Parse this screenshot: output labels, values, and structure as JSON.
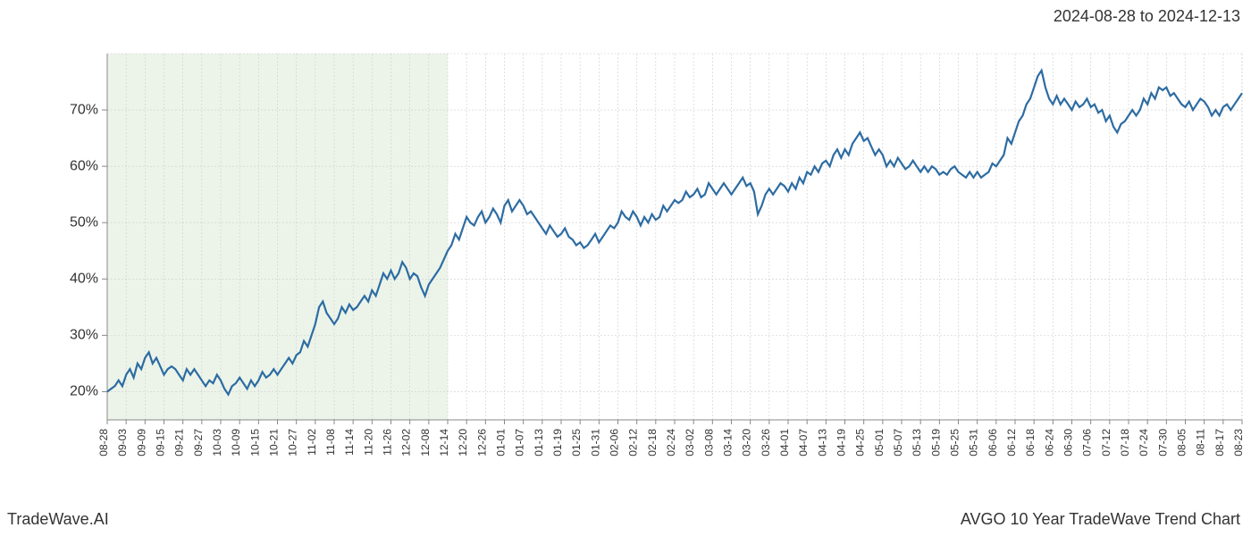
{
  "header": {
    "date_range": "2024-08-28 to 2024-12-13"
  },
  "footer": {
    "brand": "TradeWave.AI",
    "title": "AVGO 10 Year TradeWave Trend Chart"
  },
  "chart": {
    "type": "line",
    "line_color": "#2d6ca2",
    "line_width": 2.2,
    "background_color": "#ffffff",
    "grid_color": "#cccccc",
    "axis_color": "#888888",
    "highlight_band": {
      "start_label": "08-28",
      "end_label": "12-14",
      "fill_color": "#c9dfc4"
    },
    "ylim": [
      15,
      80
    ],
    "yticks": [
      20,
      30,
      40,
      50,
      60,
      70
    ],
    "ytick_labels": [
      "20%",
      "30%",
      "40%",
      "50%",
      "60%",
      "70%"
    ],
    "ytick_fontsize": 16,
    "xtick_fontsize": 12,
    "xtick_rotation": -90,
    "xtick_labels": [
      "08-28",
      "09-03",
      "09-09",
      "09-15",
      "09-21",
      "09-27",
      "10-03",
      "10-09",
      "10-15",
      "10-21",
      "10-27",
      "11-02",
      "11-08",
      "11-14",
      "11-20",
      "11-26",
      "12-02",
      "12-08",
      "12-14",
      "12-20",
      "12-26",
      "01-01",
      "01-07",
      "01-13",
      "01-19",
      "01-25",
      "01-31",
      "02-06",
      "02-12",
      "02-18",
      "02-24",
      "03-02",
      "03-08",
      "03-14",
      "03-20",
      "03-26",
      "04-01",
      "04-07",
      "04-13",
      "04-19",
      "04-25",
      "05-01",
      "05-07",
      "05-13",
      "05-19",
      "05-25",
      "05-31",
      "06-06",
      "06-12",
      "06-18",
      "06-24",
      "06-30",
      "07-06",
      "07-12",
      "07-18",
      "07-24",
      "07-30",
      "08-05",
      "08-11",
      "08-17",
      "08-23"
    ],
    "series": {
      "values": [
        20,
        20.5,
        21,
        22,
        21,
        23,
        24,
        22.5,
        25,
        24,
        26,
        27,
        25,
        26,
        24.5,
        23,
        24,
        24.5,
        24,
        23,
        22,
        24,
        23,
        24,
        23,
        22,
        21,
        22,
        21.5,
        23,
        22,
        20.5,
        19.5,
        21,
        21.5,
        22.5,
        21.5,
        20.5,
        22,
        21,
        22,
        23.5,
        22.5,
        23,
        24,
        23,
        24,
        25,
        26,
        25,
        26.5,
        27,
        29,
        28,
        30,
        32,
        35,
        36,
        34,
        33,
        32,
        33,
        35,
        34,
        35.5,
        34.5,
        35,
        36,
        37,
        36,
        38,
        37,
        39,
        41,
        40,
        41.5,
        40,
        41,
        43,
        42,
        40,
        41,
        40.5,
        38.5,
        37,
        39,
        40,
        41,
        42,
        43.5,
        45,
        46,
        48,
        47,
        49,
        51,
        50,
        49.5,
        51,
        52,
        50,
        51,
        52.5,
        51.5,
        50,
        53,
        54,
        52,
        53,
        54,
        53,
        51.5,
        52,
        51,
        50,
        49,
        48,
        49.5,
        48.5,
        47.5,
        48,
        49,
        47.5,
        47,
        46,
        46.5,
        45.5,
        46,
        47,
        48,
        46.5,
        47.5,
        48.5,
        49.5,
        49,
        50,
        52,
        51,
        50.5,
        52,
        51,
        49.5,
        51,
        50,
        51.5,
        50.5,
        51,
        53,
        52,
        53,
        54,
        53.5,
        54,
        55.5,
        54.5,
        55,
        56,
        54.5,
        55,
        57,
        56,
        55,
        56,
        57,
        56,
        55,
        56,
        57,
        58,
        56.5,
        57,
        55.5,
        51.5,
        53,
        55,
        56,
        55,
        56,
        57,
        56.5,
        55.5,
        57,
        56,
        58,
        57,
        59,
        58.5,
        60,
        59,
        60.5,
        61,
        60,
        62,
        63,
        61.5,
        63,
        62,
        64,
        65,
        66,
        64.5,
        65,
        63.5,
        62,
        63,
        62,
        60,
        61,
        60,
        61.5,
        60.5,
        59.5,
        60,
        61,
        60,
        59,
        60,
        59,
        60,
        59.5,
        58.5,
        59,
        58.5,
        59.5,
        60,
        59,
        58.5,
        58,
        59,
        58,
        59,
        58,
        58.5,
        59,
        60.5,
        60,
        61,
        62,
        65,
        64,
        66,
        68,
        69,
        71,
        72,
        74,
        76,
        77,
        74,
        72,
        71,
        72.5,
        71,
        72,
        71,
        70,
        71.5,
        70.5,
        71,
        72,
        70.5,
        71,
        69.5,
        70,
        68,
        69,
        67,
        66,
        67.5,
        68,
        69,
        70,
        69,
        70,
        72,
        71,
        73,
        72,
        74,
        73.5,
        74,
        72.5,
        73,
        72,
        71,
        70.5,
        71.5,
        70,
        71,
        72,
        71.5,
        70.5,
        69,
        70,
        69,
        70.5,
        71,
        70,
        71,
        72,
        73
      ]
    }
  }
}
